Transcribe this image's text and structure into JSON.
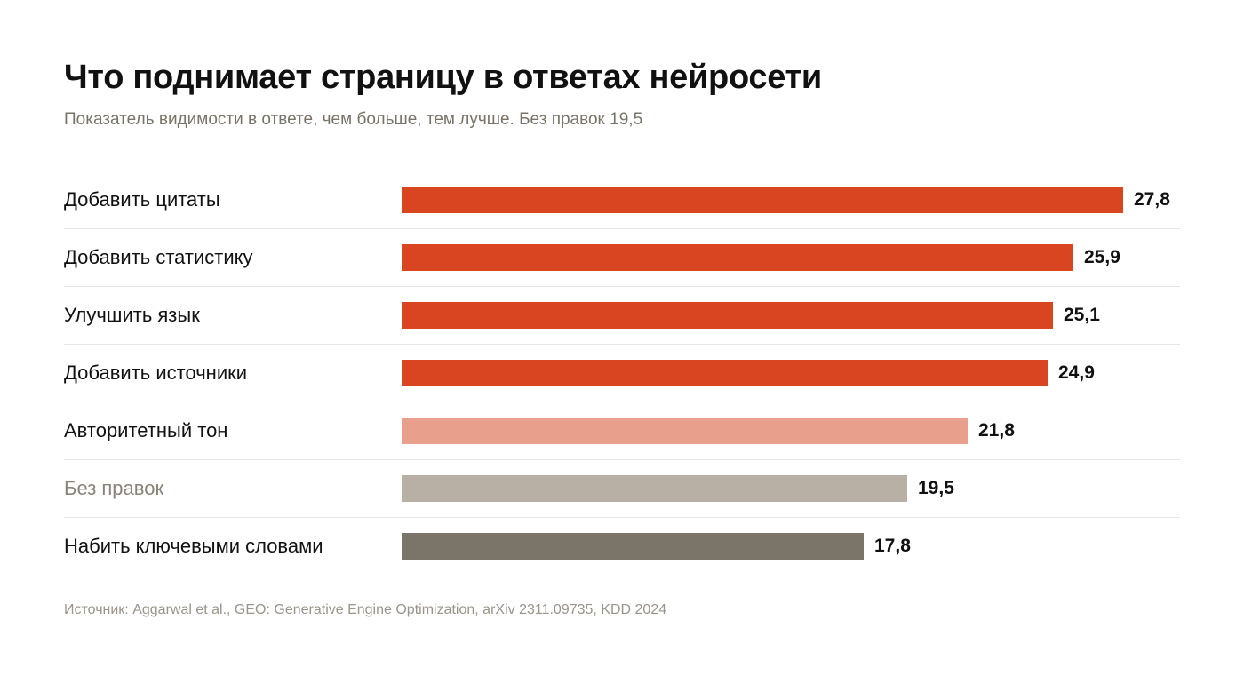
{
  "header": {
    "title": "Что поднимает страницу в ответах нейросети",
    "subtitle": "Показатель видимости в ответе, чем больше, тем лучше. Без правок 19,5"
  },
  "footer": {
    "source": "Источник: Aggarwal et al., GEO: Generative Engine Optimization, arXiv 2311.09735, KDD 2024"
  },
  "chart_data": {
    "type": "bar",
    "orientation": "horizontal",
    "title": "Что поднимает страницу в ответах нейросети",
    "subtitle": "Показатель видимости в ответе, чем больше, тем лучше. Без правок 19,5",
    "categories": [
      "Добавить цитаты",
      "Добавить статистику",
      "Улучшить язык",
      "Добавить источники",
      "Авторитетный тон",
      "Без правок",
      "Набить ключевыми словами"
    ],
    "values": [
      27.8,
      25.9,
      25.1,
      24.9,
      21.8,
      19.5,
      17.8
    ],
    "value_labels": [
      "27,8",
      "25,9",
      "25,1",
      "24,9",
      "21,8",
      "19,5",
      "17,8"
    ],
    "colors": [
      "#d94421",
      "#d94421",
      "#d94421",
      "#d94421",
      "#e8a08c",
      "#b8b0a5",
      "#7b7468"
    ],
    "label_colors": [
      "#111111",
      "#111111",
      "#111111",
      "#111111",
      "#111111",
      "#8a8478",
      "#111111"
    ],
    "xlim": [
      0,
      30
    ],
    "grid": false,
    "legend": "none"
  }
}
